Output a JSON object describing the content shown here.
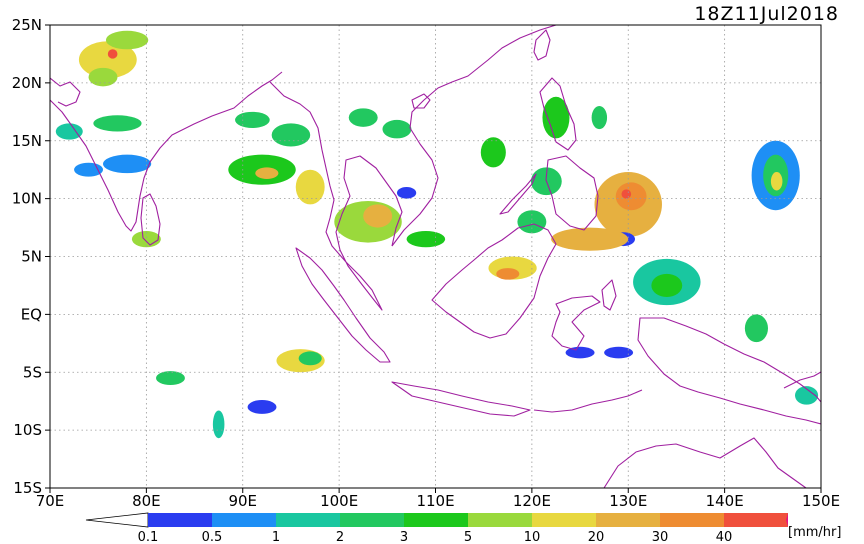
{
  "title": "18Z11Jul2018",
  "units": "[mm/hr]",
  "map": {
    "lon_range": [
      70,
      150
    ],
    "lat_range": [
      -15,
      25
    ],
    "lon_ticks": [
      {
        "value": 70,
        "label": "70E"
      },
      {
        "value": 80,
        "label": "80E"
      },
      {
        "value": 90,
        "label": "90E"
      },
      {
        "value": 100,
        "label": "100E"
      },
      {
        "value": 110,
        "label": "110E"
      },
      {
        "value": 120,
        "label": "120E"
      },
      {
        "value": 130,
        "label": "130E"
      },
      {
        "value": 140,
        "label": "140E"
      },
      {
        "value": 150,
        "label": "150E"
      }
    ],
    "lat_ticks": [
      {
        "value": 25,
        "label": "25N"
      },
      {
        "value": 20,
        "label": "20N"
      },
      {
        "value": 15,
        "label": "15N"
      },
      {
        "value": 10,
        "label": "10N"
      },
      {
        "value": 5,
        "label": "5N"
      },
      {
        "value": 0,
        "label": "EQ"
      },
      {
        "value": -5,
        "label": "5S"
      },
      {
        "value": -10,
        "label": "10S"
      },
      {
        "value": -15,
        "label": "15S"
      }
    ],
    "grid": "dotted",
    "coastline_color": "#a020a0"
  },
  "colorbar": {
    "colors": [
      "#2a3cf0",
      "#1e8ff5",
      "#19c7a0",
      "#22c860",
      "#1cc81c",
      "#9ad93c",
      "#e8d840",
      "#e6b040",
      "#ee8c32",
      "#f0503c",
      "#e6147d"
    ],
    "labels": [
      "0.1",
      "0.5",
      "1",
      "2",
      "3",
      "5",
      "10",
      "20",
      "30",
      "40"
    ]
  },
  "precip_cells": [
    {
      "lon": 76,
      "lat": 22,
      "rx": 3.0,
      "ry": 1.6,
      "level": 6
    },
    {
      "lon": 76.5,
      "lat": 22.5,
      "rx": 0.5,
      "ry": 0.4,
      "level": 9
    },
    {
      "lon": 78,
      "lat": 23.7,
      "rx": 2.2,
      "ry": 0.8,
      "level": 5
    },
    {
      "lon": 75.5,
      "lat": 20.5,
      "rx": 1.5,
      "ry": 0.8,
      "level": 5
    },
    {
      "lon": 77,
      "lat": 16.5,
      "rx": 2.5,
      "ry": 0.7,
      "level": 3
    },
    {
      "lon": 72,
      "lat": 15.8,
      "rx": 1.4,
      "ry": 0.7,
      "level": 2
    },
    {
      "lon": 78,
      "lat": 13,
      "rx": 2.5,
      "ry": 0.8,
      "level": 1
    },
    {
      "lon": 74,
      "lat": 12.5,
      "rx": 1.5,
      "ry": 0.6,
      "level": 1
    },
    {
      "lon": 92,
      "lat": 12.5,
      "rx": 3.5,
      "ry": 1.3,
      "level": 4
    },
    {
      "lon": 92.5,
      "lat": 12.2,
      "rx": 1.2,
      "ry": 0.5,
      "level": 7
    },
    {
      "lon": 97,
      "lat": 11,
      "rx": 1.5,
      "ry": 1.5,
      "level": 6
    },
    {
      "lon": 95,
      "lat": 15.5,
      "rx": 2.0,
      "ry": 1.0,
      "level": 3
    },
    {
      "lon": 91,
      "lat": 16.8,
      "rx": 1.8,
      "ry": 0.7,
      "level": 3
    },
    {
      "lon": 103,
      "lat": 8,
      "rx": 3.5,
      "ry": 1.8,
      "level": 5
    },
    {
      "lon": 104,
      "lat": 8.5,
      "rx": 1.5,
      "ry": 1.0,
      "level": 7
    },
    {
      "lon": 109,
      "lat": 6.5,
      "rx": 2.0,
      "ry": 0.7,
      "level": 4
    },
    {
      "lon": 102.5,
      "lat": 17,
      "rx": 1.5,
      "ry": 0.8,
      "level": 3
    },
    {
      "lon": 106,
      "lat": 16,
      "rx": 1.5,
      "ry": 0.8,
      "level": 3
    },
    {
      "lon": 107,
      "lat": 10.5,
      "rx": 1.0,
      "ry": 0.5,
      "level": 0
    },
    {
      "lon": 116,
      "lat": 14,
      "rx": 1.3,
      "ry": 1.3,
      "level": 4
    },
    {
      "lon": 122.5,
      "lat": 17,
      "rx": 1.4,
      "ry": 1.8,
      "level": 4
    },
    {
      "lon": 121.5,
      "lat": 11.5,
      "rx": 1.6,
      "ry": 1.2,
      "level": 3
    },
    {
      "lon": 120,
      "lat": 8,
      "rx": 1.5,
      "ry": 1.0,
      "level": 3
    },
    {
      "lon": 130,
      "lat": 9.5,
      "rx": 3.5,
      "ry": 2.8,
      "level": 7
    },
    {
      "lon": 130.3,
      "lat": 10.2,
      "rx": 1.6,
      "ry": 1.2,
      "level": 8
    },
    {
      "lon": 129.8,
      "lat": 10.4,
      "rx": 0.5,
      "ry": 0.4,
      "level": 9
    },
    {
      "lon": 129.5,
      "lat": 6.5,
      "rx": 1.2,
      "ry": 0.6,
      "level": 0
    },
    {
      "lon": 126,
      "lat": 6.5,
      "rx": 4.0,
      "ry": 1.0,
      "level": 7
    },
    {
      "lon": 118,
      "lat": 4,
      "rx": 2.5,
      "ry": 1.0,
      "level": 6
    },
    {
      "lon": 117.5,
      "lat": 3.5,
      "rx": 1.2,
      "ry": 0.5,
      "level": 8
    },
    {
      "lon": 134,
      "lat": 2.8,
      "rx": 3.5,
      "ry": 2.0,
      "level": 2
    },
    {
      "lon": 134,
      "lat": 2.5,
      "rx": 1.6,
      "ry": 1.0,
      "level": 4
    },
    {
      "lon": 145.3,
      "lat": 12,
      "rx": 2.5,
      "ry": 3.0,
      "level": 1
    },
    {
      "lon": 145.3,
      "lat": 12,
      "rx": 1.3,
      "ry": 1.8,
      "level": 3
    },
    {
      "lon": 145.4,
      "lat": 11.5,
      "rx": 0.6,
      "ry": 0.8,
      "level": 6
    },
    {
      "lon": 127,
      "lat": 17,
      "rx": 0.8,
      "ry": 1.0,
      "level": 3
    },
    {
      "lon": 143.3,
      "lat": -1.2,
      "rx": 1.2,
      "ry": 1.2,
      "level": 3
    },
    {
      "lon": 96,
      "lat": -4,
      "rx": 2.5,
      "ry": 1.0,
      "level": 6
    },
    {
      "lon": 97,
      "lat": -3.8,
      "rx": 1.2,
      "ry": 0.6,
      "level": 3
    },
    {
      "lon": 82.5,
      "lat": -5.5,
      "rx": 1.5,
      "ry": 0.6,
      "level": 3
    },
    {
      "lon": 80,
      "lat": 6.5,
      "rx": 1.5,
      "ry": 0.7,
      "level": 5
    },
    {
      "lon": 125,
      "lat": -3.3,
      "rx": 1.5,
      "ry": 0.5,
      "level": 0
    },
    {
      "lon": 129,
      "lat": -3.3,
      "rx": 1.5,
      "ry": 0.5,
      "level": 0
    },
    {
      "lon": 148.5,
      "lat": -7,
      "rx": 1.2,
      "ry": 0.8,
      "level": 2
    },
    {
      "lon": 92,
      "lat": -8,
      "rx": 1.5,
      "ry": 0.6,
      "level": 0
    },
    {
      "lon": 87.5,
      "lat": -9.5,
      "rx": 0.6,
      "ry": 1.2,
      "level": 2
    }
  ]
}
